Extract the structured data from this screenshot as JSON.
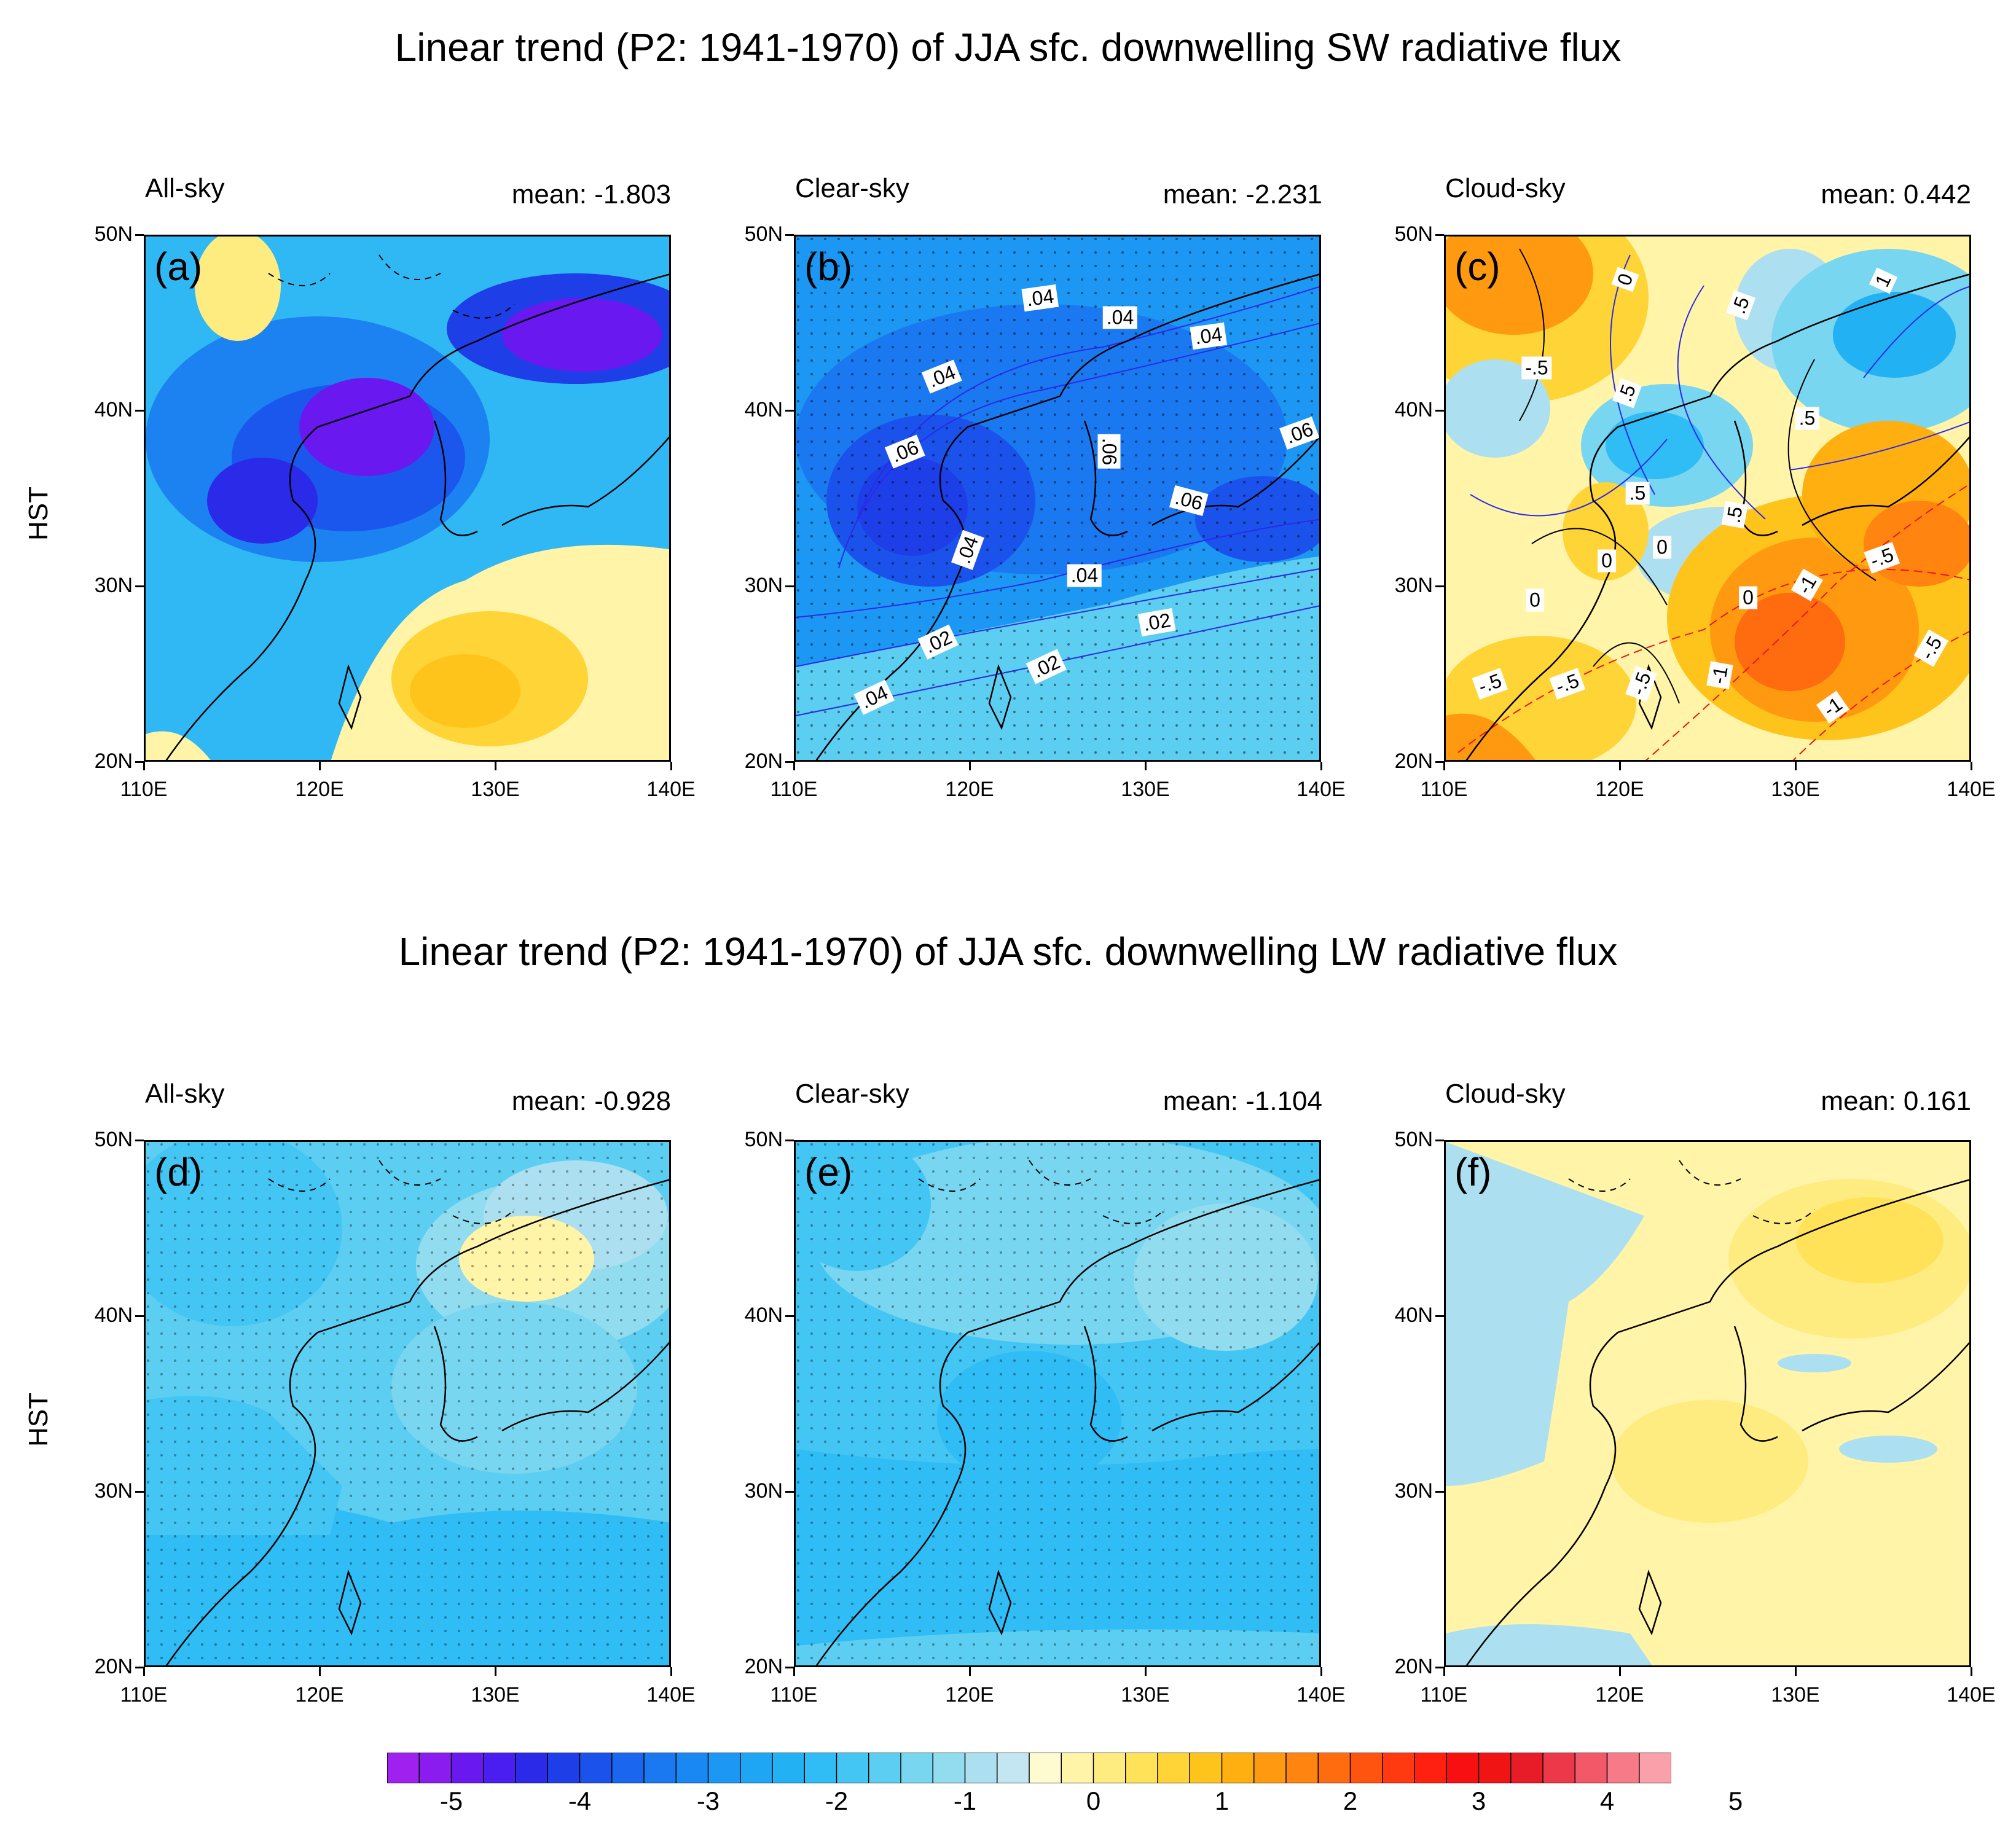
{
  "figure": {
    "row_titles": [
      "Linear trend (P2: 1941-1970) of JJA sfc. downwelling SW radiative flux",
      "Linear trend (P2: 1941-1970) of JJA sfc. downwelling LW radiative flux"
    ],
    "y_axis_title": "HST"
  },
  "axes": {
    "x_ticks": [
      "110E",
      "120E",
      "130E",
      "140E"
    ],
    "y_ticks": [
      "50N",
      "40N",
      "30N",
      "20N"
    ]
  },
  "panels": [
    {
      "label": "(a)",
      "sky": "All-sky",
      "mean_text": "mean: -1.803"
    },
    {
      "label": "(b)",
      "sky": "Clear-sky",
      "mean_text": "mean: -2.231"
    },
    {
      "label": "(c)",
      "sky": "Cloud-sky",
      "mean_text": "mean: 0.442"
    },
    {
      "label": "(d)",
      "sky": "All-sky",
      "mean_text": "mean: -0.928"
    },
    {
      "label": "(e)",
      "sky": "Clear-sky",
      "mean_text": "mean: -1.104"
    },
    {
      "label": "(f)",
      "sky": "Cloud-sky",
      "mean_text": "mean: 0.161"
    }
  ],
  "contour_labels": {
    "b": [
      ".04",
      ".04",
      ".04",
      ".04",
      ".06",
      ".06",
      ".06",
      ".06",
      ".04",
      ".04",
      ".02",
      ".02",
      ".04",
      ".02"
    ],
    "c": [
      "0",
      ".5",
      "1",
      "-.5",
      ".5",
      ".5",
      ".5",
      ".5",
      "0",
      "0",
      "0",
      "0",
      "-.5",
      "-1",
      "-.5",
      "-.5",
      "-.5",
      "-1",
      "-1",
      "-.5"
    ]
  },
  "colorbar": {
    "labels": [
      "-5",
      "-4",
      "-3",
      "-2",
      "-1",
      "0",
      "1",
      "2",
      "3",
      "4",
      "5"
    ],
    "colors": [
      "#a020f0",
      "#8a1cf0",
      "#6a18f0",
      "#4a1ef0",
      "#2a2ae8",
      "#1e3ee8",
      "#1c52ec",
      "#1a66ee",
      "#1a78f0",
      "#1a88f2",
      "#1c98f4",
      "#1ea6f4",
      "#22b2f4",
      "#30bcf4",
      "#44c6f4",
      "#5ccef2",
      "#78d6f0",
      "#92dcf0",
      "#acdff0",
      "#c4e6f2",
      "#fffbd0",
      "#fff4a8",
      "#ffec80",
      "#ffe258",
      "#ffd436",
      "#ffc41c",
      "#ffb010",
      "#ff9a10",
      "#ff8410",
      "#ff6c10",
      "#ff5410",
      "#ff3a10",
      "#ff2010",
      "#f81010",
      "#f01414",
      "#e81c28",
      "#ec3848",
      "#f25868",
      "#f67a88",
      "#faa0aa"
    ]
  }
}
